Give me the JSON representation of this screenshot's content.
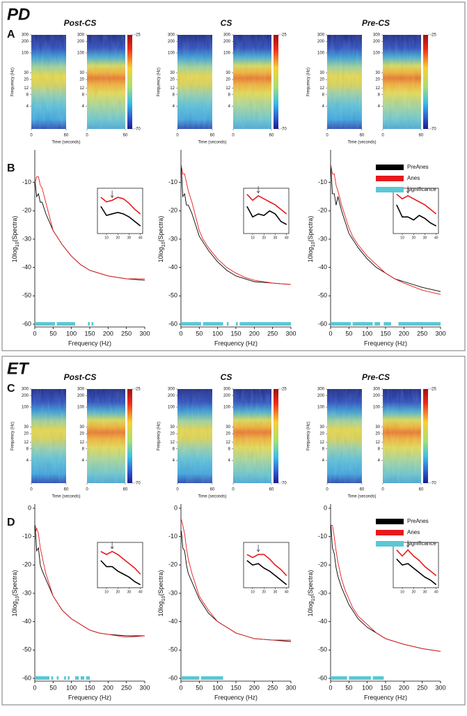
{
  "groups": [
    {
      "label": "PD",
      "spectrogram_panel": "A",
      "spectra_panel": "B",
      "spectra_yticks": [
        -60,
        -50,
        -40,
        -30,
        -20,
        -10
      ],
      "conditions": [
        {
          "title": "Post-CS",
          "series": [
            {
              "values": [
                -10,
                -15,
                -14,
                -17,
                -17,
                -21,
                -24,
                -27,
                -29,
                -32,
                -36,
                -39,
                -41,
                -42,
                -43,
                -44,
                -44.5
              ]
            },
            {
              "values": [
                -10,
                -8,
                -8,
                -11,
                -12,
                -17,
                -22,
                -27,
                -29,
                -32,
                -36,
                -39,
                -41,
                -42,
                -43,
                -44,
                -44
              ]
            }
          ],
          "inset_series": [
            {
              "values": [
                -20,
                -26,
                -25,
                -24,
                -25,
                -27,
                -30,
                -33
              ]
            },
            {
              "values": [
                -14,
                -17,
                -16,
                -14,
                -15,
                -18,
                -22,
                -25
              ]
            }
          ],
          "significance": [
            [
              0,
              55
            ],
            [
              60,
              110
            ],
            [
              145,
              150
            ],
            [
              155,
              160
            ]
          ]
        },
        {
          "title": "CS",
          "series": [
            {
              "values": [
                -5,
                -15,
                -14,
                -18,
                -18,
                -21,
                -25,
                -29,
                -31,
                -34,
                -38,
                -41,
                -43,
                -44,
                -45,
                -45.5,
                -46
              ]
            },
            {
              "values": [
                -4,
                -7,
                -7,
                -10,
                -13,
                -17,
                -22,
                -27,
                -30,
                -33,
                -37,
                -40,
                -42,
                -43.5,
                -44.5,
                -45.5,
                -46
              ]
            }
          ],
          "inset_series": [
            {
              "values": [
                -20,
                -27,
                -25,
                -26,
                -23,
                -25,
                -30,
                -32
              ]
            },
            {
              "values": [
                -12,
                -16,
                -13,
                -15,
                -17,
                -19,
                -22,
                -25
              ]
            }
          ],
          "significance": [
            [
              0,
              55
            ],
            [
              60,
              115
            ],
            [
              125,
              130
            ],
            [
              150,
              155
            ],
            [
              160,
              300
            ]
          ]
        },
        {
          "title": "Pre-CS",
          "series": [
            {
              "values": [
                -5,
                -14,
                -14,
                -18,
                -15,
                -20,
                -24,
                -28,
                -30,
                -33,
                -37,
                -40,
                -42,
                -44,
                -45,
                -47,
                -48.5
              ]
            },
            {
              "values": [
                -4,
                -7,
                -7,
                -11,
                -13,
                -18,
                -22,
                -26,
                -29,
                -32,
                -36,
                -39,
                -42,
                -44,
                -45.5,
                -48,
                -49.5
              ]
            }
          ],
          "inset_series": [
            {
              "values": [
                -19,
                -27,
                -27,
                -29,
                -26,
                -28,
                -31,
                -33
              ]
            },
            {
              "values": [
                -12,
                -15,
                -13,
                -15,
                -17,
                -19,
                -22,
                -25
              ]
            }
          ],
          "significance": [
            [
              0,
              55
            ],
            [
              60,
              115
            ],
            [
              120,
              135
            ],
            [
              145,
              165
            ],
            [
              185,
              300
            ]
          ]
        }
      ]
    },
    {
      "label": "ET",
      "spectrogram_panel": "C",
      "spectra_panel": "D",
      "spectra_yticks": [
        -60,
        -50,
        -40,
        -30,
        -20,
        -10,
        0
      ],
      "conditions": [
        {
          "title": "Post-CS",
          "series": [
            {
              "values": [
                -6,
                -15,
                -14,
                -20,
                -22,
                -25,
                -28,
                -31,
                -33,
                -36,
                -39,
                -41,
                -43,
                -44,
                -44.5,
                -45,
                -45
              ]
            },
            {
              "values": [
                -9,
                -7,
                -9,
                -14,
                -17,
                -23,
                -27,
                -31,
                -33,
                -36,
                -39,
                -41,
                -43,
                -44,
                -44.5,
                -45.5,
                -45
              ]
            }
          ],
          "inset_series": [
            {
              "values": [
                -20,
                -24,
                -24,
                -27,
                -29,
                -31,
                -34,
                -36
              ]
            },
            {
              "values": [
                -14,
                -16,
                -14,
                -16,
                -19,
                -22,
                -25,
                -29
              ]
            }
          ],
          "significance": [
            [
              0,
              40
            ],
            [
              45,
              50
            ],
            [
              60,
              65
            ],
            [
              80,
              85
            ],
            [
              90,
              95
            ],
            [
              110,
              120
            ],
            [
              125,
              135
            ],
            [
              140,
              150
            ]
          ]
        },
        {
          "title": "CS",
          "series": [
            {
              "values": [
                -8,
                -14,
                -15,
                -20,
                -23,
                -26,
                -29,
                -32,
                -34,
                -37,
                -40,
                -42,
                -44,
                -45,
                -46,
                -46.5,
                -47
              ]
            },
            {
              "values": [
                -4,
                -6,
                -9,
                -14,
                -18,
                -23,
                -27,
                -31,
                -33,
                -36,
                -40,
                -42,
                -44,
                -45,
                -46,
                -46.5,
                -46.5
              ]
            }
          ],
          "inset_series": [
            {
              "values": [
                -20,
                -23,
                -22,
                -25,
                -27,
                -30,
                -33,
                -36
              ]
            },
            {
              "values": [
                -16,
                -18,
                -16,
                -16,
                -19,
                -23,
                -26,
                -30
              ]
            }
          ],
          "significance": [
            [
              0,
              50
            ],
            [
              55,
              115
            ]
          ]
        },
        {
          "title": "Pre-CS",
          "series": [
            {
              "values": [
                -6,
                -14,
                -16,
                -21,
                -24,
                -28,
                -31,
                -34,
                -36,
                -39,
                -42,
                -44,
                -46,
                -47,
                -48,
                -49.5,
                -50.5
              ]
            },
            {
              "values": [
                -6,
                -6,
                -10,
                -15,
                -19,
                -25,
                -29,
                -32,
                -35,
                -38,
                -41,
                -44,
                -46,
                -47,
                -48,
                -49.5,
                -50.5
              ]
            }
          ],
          "inset_series": [
            {
              "values": [
                -19,
                -23,
                -22,
                -25,
                -28,
                -31,
                -33,
                -36
              ]
            },
            {
              "values": [
                -13,
                -17,
                -13,
                -17,
                -20,
                -24,
                -27,
                -30
              ]
            }
          ],
          "significance": [
            [
              0,
              45
            ],
            [
              50,
              110
            ],
            [
              115,
              145
            ]
          ]
        }
      ]
    }
  ],
  "spectrogram": {
    "ylabel": "Frequency (Hz)",
    "log_scale": true,
    "ylim": [
      1,
      300
    ],
    "yticks": [
      300,
      200,
      100,
      30,
      20,
      12,
      8,
      4
    ],
    "xlabel": "Time (seconds)",
    "xlim": [
      0,
      60
    ],
    "xticks": [
      0,
      60
    ],
    "colorbar_lim": [
      -70,
      -25
    ],
    "colorbar_ticks": [
      -25,
      -70
    ]
  },
  "spectra": {
    "ylabel": [
      "10log",
      "10",
      "(Spectra)"
    ],
    "xlabel": "Frequency (Hz)",
    "xlim": [
      0,
      300
    ],
    "ylim": [
      -60,
      0
    ],
    "xticks": [
      0,
      50,
      100,
      150,
      200,
      250,
      300
    ],
    "x": [
      1,
      5,
      10,
      15,
      20,
      30,
      40,
      50,
      60,
      75,
      100,
      125,
      150,
      175,
      200,
      250,
      300
    ],
    "inset": {
      "x": [
        5,
        10,
        15,
        20,
        25,
        30,
        35,
        40
      ],
      "xlim": [
        2,
        42
      ],
      "ylim": [
        -38,
        -8
      ],
      "xticks": [
        10,
        20,
        30,
        40
      ]
    }
  },
  "legend": {
    "corner": "upper right",
    "entries": [
      {
        "name": "PreAnes",
        "color": "#000000"
      },
      {
        "name": "Anes",
        "color": "#e8191b"
      },
      {
        "name": "significance",
        "color": "#5bc8d4"
      }
    ]
  }
}
